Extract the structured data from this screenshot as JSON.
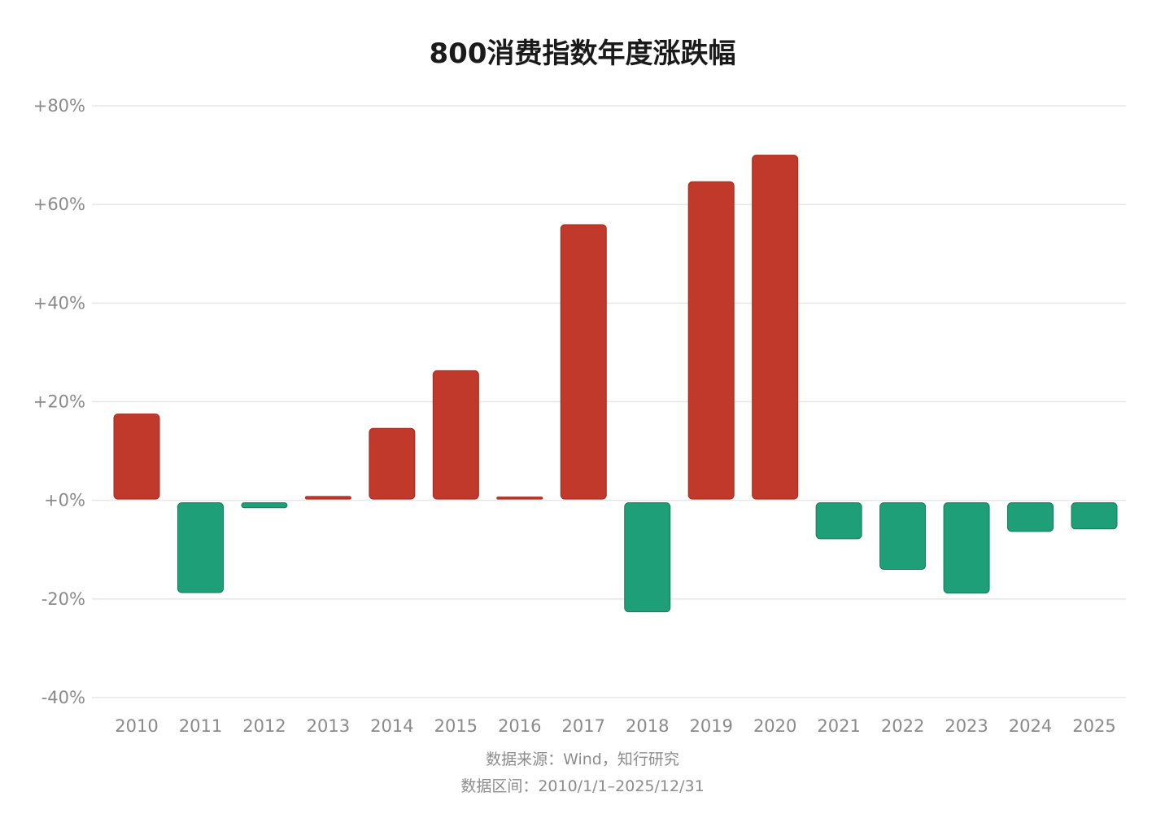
{
  "title": "800消费指数年度涨跌幅",
  "source": "数据来源：Wind，知行研究",
  "range": "数据区间：2010/1/1–2025/12/31",
  "colors": {
    "up": "#c0392b",
    "down": "#1e9f78",
    "grid": "#e6e6e6",
    "tick": "#8a8a8a"
  },
  "chart_data": {
    "type": "bar",
    "title": "800消费指数年度涨跌幅",
    "xlabel": "",
    "ylabel": "",
    "ylim": [
      -40,
      80
    ],
    "grid": true,
    "ytick_values": [
      80,
      60,
      40,
      20,
      0,
      -20,
      -40
    ],
    "ytick_labels": [
      "+80%",
      "+60%",
      "+40%",
      "+20%",
      "+0%",
      "-20%",
      "-40%"
    ],
    "categories": [
      "2010",
      "2011",
      "2012",
      "2013",
      "2014",
      "2015",
      "2016",
      "2017",
      "2018",
      "2019",
      "2020",
      "2021",
      "2022",
      "2023",
      "2024",
      "2025"
    ],
    "values": [
      17.5,
      -18.7,
      -1.5,
      0.8,
      14.6,
      26.3,
      0.4,
      55.9,
      -22.6,
      64.6,
      70.0,
      -7.8,
      -14.0,
      -18.8,
      -6.3,
      -5.8
    ]
  }
}
